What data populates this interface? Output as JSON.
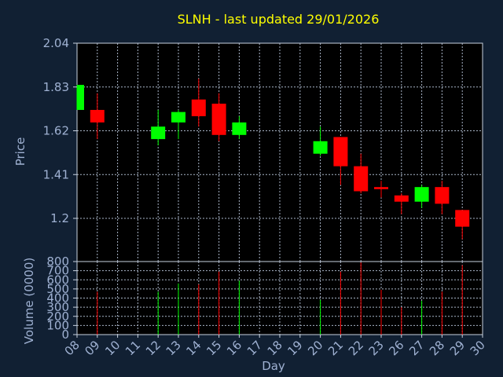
{
  "colors": {
    "background": "#112033",
    "plot_background": "#000000",
    "grid": "#a9b5c7",
    "frame": "#c9d2df",
    "text": "#9fb1d2",
    "title": "#ffff00",
    "up": "#00ff00",
    "down": "#ff0000"
  },
  "chart_data": [
    {
      "type": "candlestick",
      "title": "SLNH - last updated 29/01/2026",
      "ylabel": "Price",
      "ylim": [
        1.2,
        2.04
      ],
      "grid": true,
      "y_ticks": [
        "2.04",
        "1.83",
        "1.62",
        "1.41",
        "1.2"
      ],
      "y_tick_values": [
        2.04,
        1.83,
        1.62,
        1.41,
        1.2
      ],
      "categories": [
        "08",
        "09",
        "10",
        "11",
        "12",
        "13",
        "14",
        "15",
        "16",
        "17",
        "18",
        "19",
        "20",
        "21",
        "22",
        "23",
        "26",
        "27",
        "28",
        "29",
        "30"
      ],
      "series": [
        {
          "day": "08",
          "open": 1.72,
          "high": 1.84,
          "low": 1.72,
          "close": 1.84
        },
        {
          "day": "09",
          "open": 1.72,
          "high": 1.8,
          "low": 1.58,
          "close": 1.66
        },
        {
          "day": "12",
          "open": 1.58,
          "high": 1.72,
          "low": 1.55,
          "close": 1.64
        },
        {
          "day": "13",
          "open": 1.66,
          "high": 1.72,
          "low": 1.58,
          "close": 1.71
        },
        {
          "day": "14",
          "open": 1.77,
          "high": 1.87,
          "low": 1.64,
          "close": 1.69
        },
        {
          "day": "15",
          "open": 1.75,
          "high": 1.8,
          "low": 1.57,
          "close": 1.6
        },
        {
          "day": "16",
          "open": 1.6,
          "high": 1.69,
          "low": 1.58,
          "close": 1.66
        },
        {
          "day": "20",
          "open": 1.51,
          "high": 1.64,
          "low": 1.5,
          "close": 1.57
        },
        {
          "day": "21",
          "open": 1.59,
          "high": 1.59,
          "low": 1.36,
          "close": 1.45
        },
        {
          "day": "22",
          "open": 1.45,
          "high": 1.51,
          "low": 1.32,
          "close": 1.33
        },
        {
          "day": "23",
          "open": 1.35,
          "high": 1.38,
          "low": 1.3,
          "close": 1.34
        },
        {
          "day": "26",
          "open": 1.31,
          "high": 1.32,
          "low": 1.22,
          "close": 1.28
        },
        {
          "day": "27",
          "open": 1.28,
          "high": 1.36,
          "low": 1.25,
          "close": 1.35
        },
        {
          "day": "28",
          "open": 1.35,
          "high": 1.38,
          "low": 1.22,
          "close": 1.27
        },
        {
          "day": "29",
          "open": 1.24,
          "high": 1.24,
          "low": 1.1,
          "close": 1.16
        }
      ]
    },
    {
      "type": "bar",
      "ylabel": "Volume (0000)",
      "xlabel": "Day",
      "ylim": [
        0,
        800
      ],
      "grid": true,
      "y_ticks": [
        "800",
        "700",
        "600",
        "500",
        "400",
        "300",
        "200",
        "100",
        "0"
      ],
      "y_tick_values": [
        800,
        700,
        600,
        500,
        400,
        300,
        200,
        100,
        0
      ],
      "categories": [
        "08",
        "09",
        "10",
        "11",
        "12",
        "13",
        "14",
        "15",
        "16",
        "17",
        "18",
        "19",
        "20",
        "21",
        "22",
        "23",
        "26",
        "27",
        "28",
        "29",
        "30"
      ],
      "series": [
        {
          "day": "09",
          "value": 470,
          "direction": "down"
        },
        {
          "day": "12",
          "value": 470,
          "direction": "up"
        },
        {
          "day": "13",
          "value": 560,
          "direction": "up"
        },
        {
          "day": "14",
          "value": 550,
          "direction": "down"
        },
        {
          "day": "15",
          "value": 690,
          "direction": "down"
        },
        {
          "day": "16",
          "value": 590,
          "direction": "up"
        },
        {
          "day": "20",
          "value": 380,
          "direction": "up"
        },
        {
          "day": "21",
          "value": 690,
          "direction": "down"
        },
        {
          "day": "22",
          "value": 790,
          "direction": "down"
        },
        {
          "day": "23",
          "value": 490,
          "direction": "down"
        },
        {
          "day": "26",
          "value": 300,
          "direction": "down"
        },
        {
          "day": "27",
          "value": 370,
          "direction": "up"
        },
        {
          "day": "28",
          "value": 470,
          "direction": "down"
        },
        {
          "day": "29",
          "value": 760,
          "direction": "down"
        }
      ]
    }
  ]
}
